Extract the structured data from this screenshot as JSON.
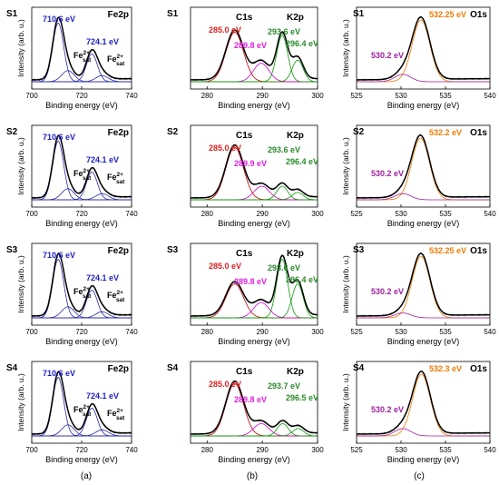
{
  "chart_data": [
    {
      "type": "line",
      "panel_label": "S1",
      "core_level": "Fe2p",
      "xlim": [
        700,
        740
      ],
      "xticks": [
        700,
        720,
        740
      ],
      "xlabel": "Binding energy (eV)",
      "ylabel": "Intensity (arb. u.)",
      "peaks": [
        {
          "label": "710.6 eV",
          "color": "#1f1fc8"
        },
        {
          "label": "724.1 eV",
          "color": "#1f1fc8"
        }
      ],
      "satellites": [
        {
          "base": "Fe",
          "sup": "2+",
          "sub": "sat"
        },
        {
          "base": "Fe",
          "sup": "2+",
          "sub": "sat"
        }
      ],
      "components": [
        {
          "center": 710.6,
          "amp": 0.95,
          "width": 2.2
        },
        {
          "center": 714.5,
          "amp": 0.18,
          "width": 2.5
        },
        {
          "center": 724.1,
          "amp": 0.45,
          "width": 2.2
        },
        {
          "center": 728.2,
          "amp": 0.1,
          "width": 2.5
        }
      ],
      "component_color": "#2a2aa8",
      "fit_color": "#000000",
      "raw_color": "#000000"
    },
    {
      "type": "line",
      "panel_label": "S1",
      "core_level": "C1s",
      "core_level_2": "K2p",
      "xlim": [
        277,
        300
      ],
      "xticks": [
        280,
        290,
        300
      ],
      "xlabel": "Binding energy (eV)",
      "ylabel": "",
      "peaks": [
        {
          "label": "285.0 eV",
          "color": "#e02020"
        },
        {
          "label": "289.8 eV",
          "color": "#e020e0"
        },
        {
          "label": "293.6 eV",
          "color": "#2a8a2a"
        },
        {
          "label": "296.4 eV",
          "color": "#2a8a2a"
        }
      ],
      "components": [
        {
          "center": 285.0,
          "amp": 0.8,
          "width": 1.6,
          "color": "#c00000"
        },
        {
          "center": 289.8,
          "amp": 0.3,
          "width": 1.4,
          "color": "#d000d0"
        },
        {
          "center": 293.6,
          "amp": 0.75,
          "width": 1.0,
          "color": "#0a9a0a"
        },
        {
          "center": 296.4,
          "amp": 0.35,
          "width": 1.0,
          "color": "#0a9a0a"
        }
      ],
      "fit_color": "#000000",
      "raw_color": "#000000"
    },
    {
      "type": "line",
      "panel_label": "S1",
      "core_level": "O1s",
      "xlim": [
        525,
        540
      ],
      "xticks": [
        525,
        530,
        535,
        540
      ],
      "xlabel": "Binding energy (eV)",
      "ylabel": "Intensity (arb. u.)",
      "peaks": [
        {
          "label": "532.25 eV",
          "color": "#f07a00"
        },
        {
          "label": "530.2 eV",
          "color": "#a020a0"
        }
      ],
      "components": [
        {
          "center": 532.25,
          "amp": 1.0,
          "width": 1.0,
          "color": "#f07a00"
        },
        {
          "center": 530.2,
          "amp": 0.12,
          "width": 0.9,
          "color": "#a020a0"
        }
      ],
      "fit_color": "#000000",
      "raw_color": "#000000"
    },
    {
      "type": "line",
      "panel_label": "S2",
      "core_level": "Fe2p",
      "xlim": [
        700,
        740
      ],
      "xticks": [
        700,
        720,
        740
      ],
      "xlabel": "Binding energy (eV)",
      "ylabel": "Intensity (arb. u.)",
      "peaks": [
        {
          "label": "710.6 eV",
          "color": "#1f1fc8"
        },
        {
          "label": "724.1 eV",
          "color": "#1f1fc8"
        }
      ],
      "satellites": [
        {
          "base": "Fe",
          "sup": "2+",
          "sub": "sat"
        },
        {
          "base": "Fe",
          "sup": "2+",
          "sub": "sat"
        }
      ],
      "components": [
        {
          "center": 710.6,
          "amp": 0.95,
          "width": 2.2
        },
        {
          "center": 714.5,
          "amp": 0.18,
          "width": 2.5
        },
        {
          "center": 724.1,
          "amp": 0.45,
          "width": 2.2
        },
        {
          "center": 728.2,
          "amp": 0.1,
          "width": 2.5
        }
      ],
      "component_color": "#2a2aa8",
      "fit_color": "#000000",
      "raw_color": "#000000"
    },
    {
      "type": "line",
      "panel_label": "S2",
      "core_level": "C1s",
      "core_level_2": "K2p",
      "xlim": [
        277,
        300
      ],
      "xticks": [
        280,
        290,
        300
      ],
      "xlabel": "Binding energy (eV)",
      "ylabel": "",
      "peaks": [
        {
          "label": "285.0 eV",
          "color": "#e02020"
        },
        {
          "label": "289.9 eV",
          "color": "#e020e0"
        },
        {
          "label": "293.6 eV",
          "color": "#2a8a2a"
        },
        {
          "label": "296.4 eV",
          "color": "#2a8a2a"
        }
      ],
      "components": [
        {
          "center": 285.0,
          "amp": 0.85,
          "width": 1.6,
          "color": "#c00000"
        },
        {
          "center": 289.9,
          "amp": 0.22,
          "width": 1.4,
          "color": "#d000d0"
        },
        {
          "center": 293.6,
          "amp": 0.22,
          "width": 1.0,
          "color": "#0a9a0a"
        },
        {
          "center": 296.4,
          "amp": 0.12,
          "width": 1.0,
          "color": "#0a9a0a"
        }
      ],
      "fit_color": "#000000",
      "raw_color": "#000000"
    },
    {
      "type": "line",
      "panel_label": "S2",
      "core_level": "O1s",
      "xlim": [
        525,
        540
      ],
      "xticks": [
        525,
        530,
        535,
        540
      ],
      "xlabel": "Binding energy (eV)",
      "ylabel": "Intensity (arb. u.)",
      "peaks": [
        {
          "label": "532.2 eV",
          "color": "#f07a00"
        },
        {
          "label": "530.2 eV",
          "color": "#a020a0"
        }
      ],
      "components": [
        {
          "center": 532.2,
          "amp": 1.0,
          "width": 1.0,
          "color": "#f07a00"
        },
        {
          "center": 530.2,
          "amp": 0.1,
          "width": 0.9,
          "color": "#a020a0"
        }
      ],
      "fit_color": "#000000",
      "raw_color": "#000000"
    },
    {
      "type": "line",
      "panel_label": "S3",
      "core_level": "Fe2p",
      "xlim": [
        700,
        740
      ],
      "xticks": [
        700,
        720,
        740
      ],
      "xlabel": "Binding energy (eV)",
      "ylabel": "Intensity (arb. u.)",
      "peaks": [
        {
          "label": "710.6 eV",
          "color": "#1f1fc8"
        },
        {
          "label": "724.1 eV",
          "color": "#1f1fc8"
        }
      ],
      "satellites": [
        {
          "base": "Fe",
          "sup": "2+",
          "sub": "sat"
        },
        {
          "base": "Fe",
          "sup": "2+",
          "sub": "sat"
        }
      ],
      "components": [
        {
          "center": 710.6,
          "amp": 0.95,
          "width": 2.2
        },
        {
          "center": 714.5,
          "amp": 0.18,
          "width": 2.5
        },
        {
          "center": 724.1,
          "amp": 0.45,
          "width": 2.2
        },
        {
          "center": 728.2,
          "amp": 0.1,
          "width": 2.5
        }
      ],
      "component_color": "#2a2aa8",
      "fit_color": "#000000",
      "raw_color": "#000000"
    },
    {
      "type": "line",
      "panel_label": "S3",
      "core_level": "C1s",
      "core_level_2": "K2p",
      "xlim": [
        277,
        300
      ],
      "xticks": [
        280,
        290,
        300
      ],
      "xlabel": "Binding energy (eV)",
      "ylabel": "",
      "peaks": [
        {
          "label": "285.0 eV",
          "color": "#e02020"
        },
        {
          "label": "289.8 eV",
          "color": "#e020e0"
        },
        {
          "label": "293.6 eV",
          "color": "#2a8a2a"
        },
        {
          "label": "296.4 eV",
          "color": "#2a8a2a"
        }
      ],
      "components": [
        {
          "center": 285.0,
          "amp": 0.55,
          "width": 1.6,
          "color": "#c00000"
        },
        {
          "center": 289.8,
          "amp": 0.25,
          "width": 1.4,
          "color": "#d000d0"
        },
        {
          "center": 293.6,
          "amp": 0.95,
          "width": 1.0,
          "color": "#0a9a0a"
        },
        {
          "center": 296.4,
          "amp": 0.55,
          "width": 1.0,
          "color": "#0a9a0a"
        }
      ],
      "fit_color": "#000000",
      "raw_color": "#000000"
    },
    {
      "type": "line",
      "panel_label": "S3",
      "core_level": "O1s",
      "xlim": [
        525,
        540
      ],
      "xticks": [
        525,
        530,
        535,
        540
      ],
      "xlabel": "Binding energy (eV)",
      "ylabel": "Intensity (arb. u.)",
      "peaks": [
        {
          "label": "532.25 eV",
          "color": "#f07a00"
        },
        {
          "label": "530.2 eV",
          "color": "#a020a0"
        }
      ],
      "components": [
        {
          "center": 532.25,
          "amp": 1.0,
          "width": 1.0,
          "color": "#f07a00"
        },
        {
          "center": 530.2,
          "amp": 0.08,
          "width": 0.9,
          "color": "#a020a0"
        }
      ],
      "fit_color": "#000000",
      "raw_color": "#000000"
    },
    {
      "type": "line",
      "panel_label": "S4",
      "core_level": "Fe2p",
      "xlim": [
        700,
        740
      ],
      "xticks": [
        700,
        720,
        740
      ],
      "xlabel": "Binding energy (eV)",
      "ylabel": "Intensity (arb. u.)",
      "peaks": [
        {
          "label": "710.6 eV",
          "color": "#1f1fc8"
        },
        {
          "label": "724.1 eV",
          "color": "#1f1fc8"
        }
      ],
      "satellites": [
        {
          "base": "Fe",
          "sup": "2+",
          "sub": "sat"
        },
        {
          "base": "Fe",
          "sup": "2+",
          "sub": "sat"
        }
      ],
      "components": [
        {
          "center": 710.6,
          "amp": 0.95,
          "width": 2.2
        },
        {
          "center": 714.5,
          "amp": 0.18,
          "width": 2.5
        },
        {
          "center": 724.1,
          "amp": 0.45,
          "width": 2.2
        },
        {
          "center": 728.2,
          "amp": 0.1,
          "width": 2.5
        }
      ],
      "component_color": "#2a2aa8",
      "fit_color": "#000000",
      "raw_color": "#000000"
    },
    {
      "type": "line",
      "panel_label": "S4",
      "core_level": "C1s",
      "core_level_2": "K2p",
      "xlim": [
        277,
        300
      ],
      "xticks": [
        280,
        290,
        300
      ],
      "xlabel": "Binding energy (eV)",
      "ylabel": "",
      "peaks": [
        {
          "label": "285.0 eV",
          "color": "#e02020"
        },
        {
          "label": "289.8 eV",
          "color": "#e020e0"
        },
        {
          "label": "293.7 eV",
          "color": "#2a8a2a"
        },
        {
          "label": "296.5 eV",
          "color": "#2a8a2a"
        }
      ],
      "components": [
        {
          "center": 285.0,
          "amp": 0.85,
          "width": 1.6,
          "color": "#c00000"
        },
        {
          "center": 289.8,
          "amp": 0.2,
          "width": 1.4,
          "color": "#d000d0"
        },
        {
          "center": 293.7,
          "amp": 0.2,
          "width": 1.0,
          "color": "#0a9a0a"
        },
        {
          "center": 296.5,
          "amp": 0.12,
          "width": 1.0,
          "color": "#0a9a0a"
        }
      ],
      "fit_color": "#000000",
      "raw_color": "#000000"
    },
    {
      "type": "line",
      "panel_label": "S4",
      "core_level": "O1s",
      "xlim": [
        525,
        540
      ],
      "xticks": [
        525,
        530,
        535,
        540
      ],
      "xlabel": "Binding energy (eV)",
      "ylabel": "Intensity (arb. u.)",
      "peaks": [
        {
          "label": "532.3 eV",
          "color": "#f07a00"
        },
        {
          "label": "530.2 eV",
          "color": "#a020a0"
        }
      ],
      "components": [
        {
          "center": 532.3,
          "amp": 1.0,
          "width": 1.0,
          "color": "#f07a00"
        },
        {
          "center": 530.2,
          "amp": 0.12,
          "width": 0.9,
          "color": "#a020a0"
        }
      ],
      "fit_color": "#000000",
      "raw_color": "#000000"
    }
  ],
  "column_labels": [
    "(a)",
    "(b)",
    "(c)"
  ]
}
